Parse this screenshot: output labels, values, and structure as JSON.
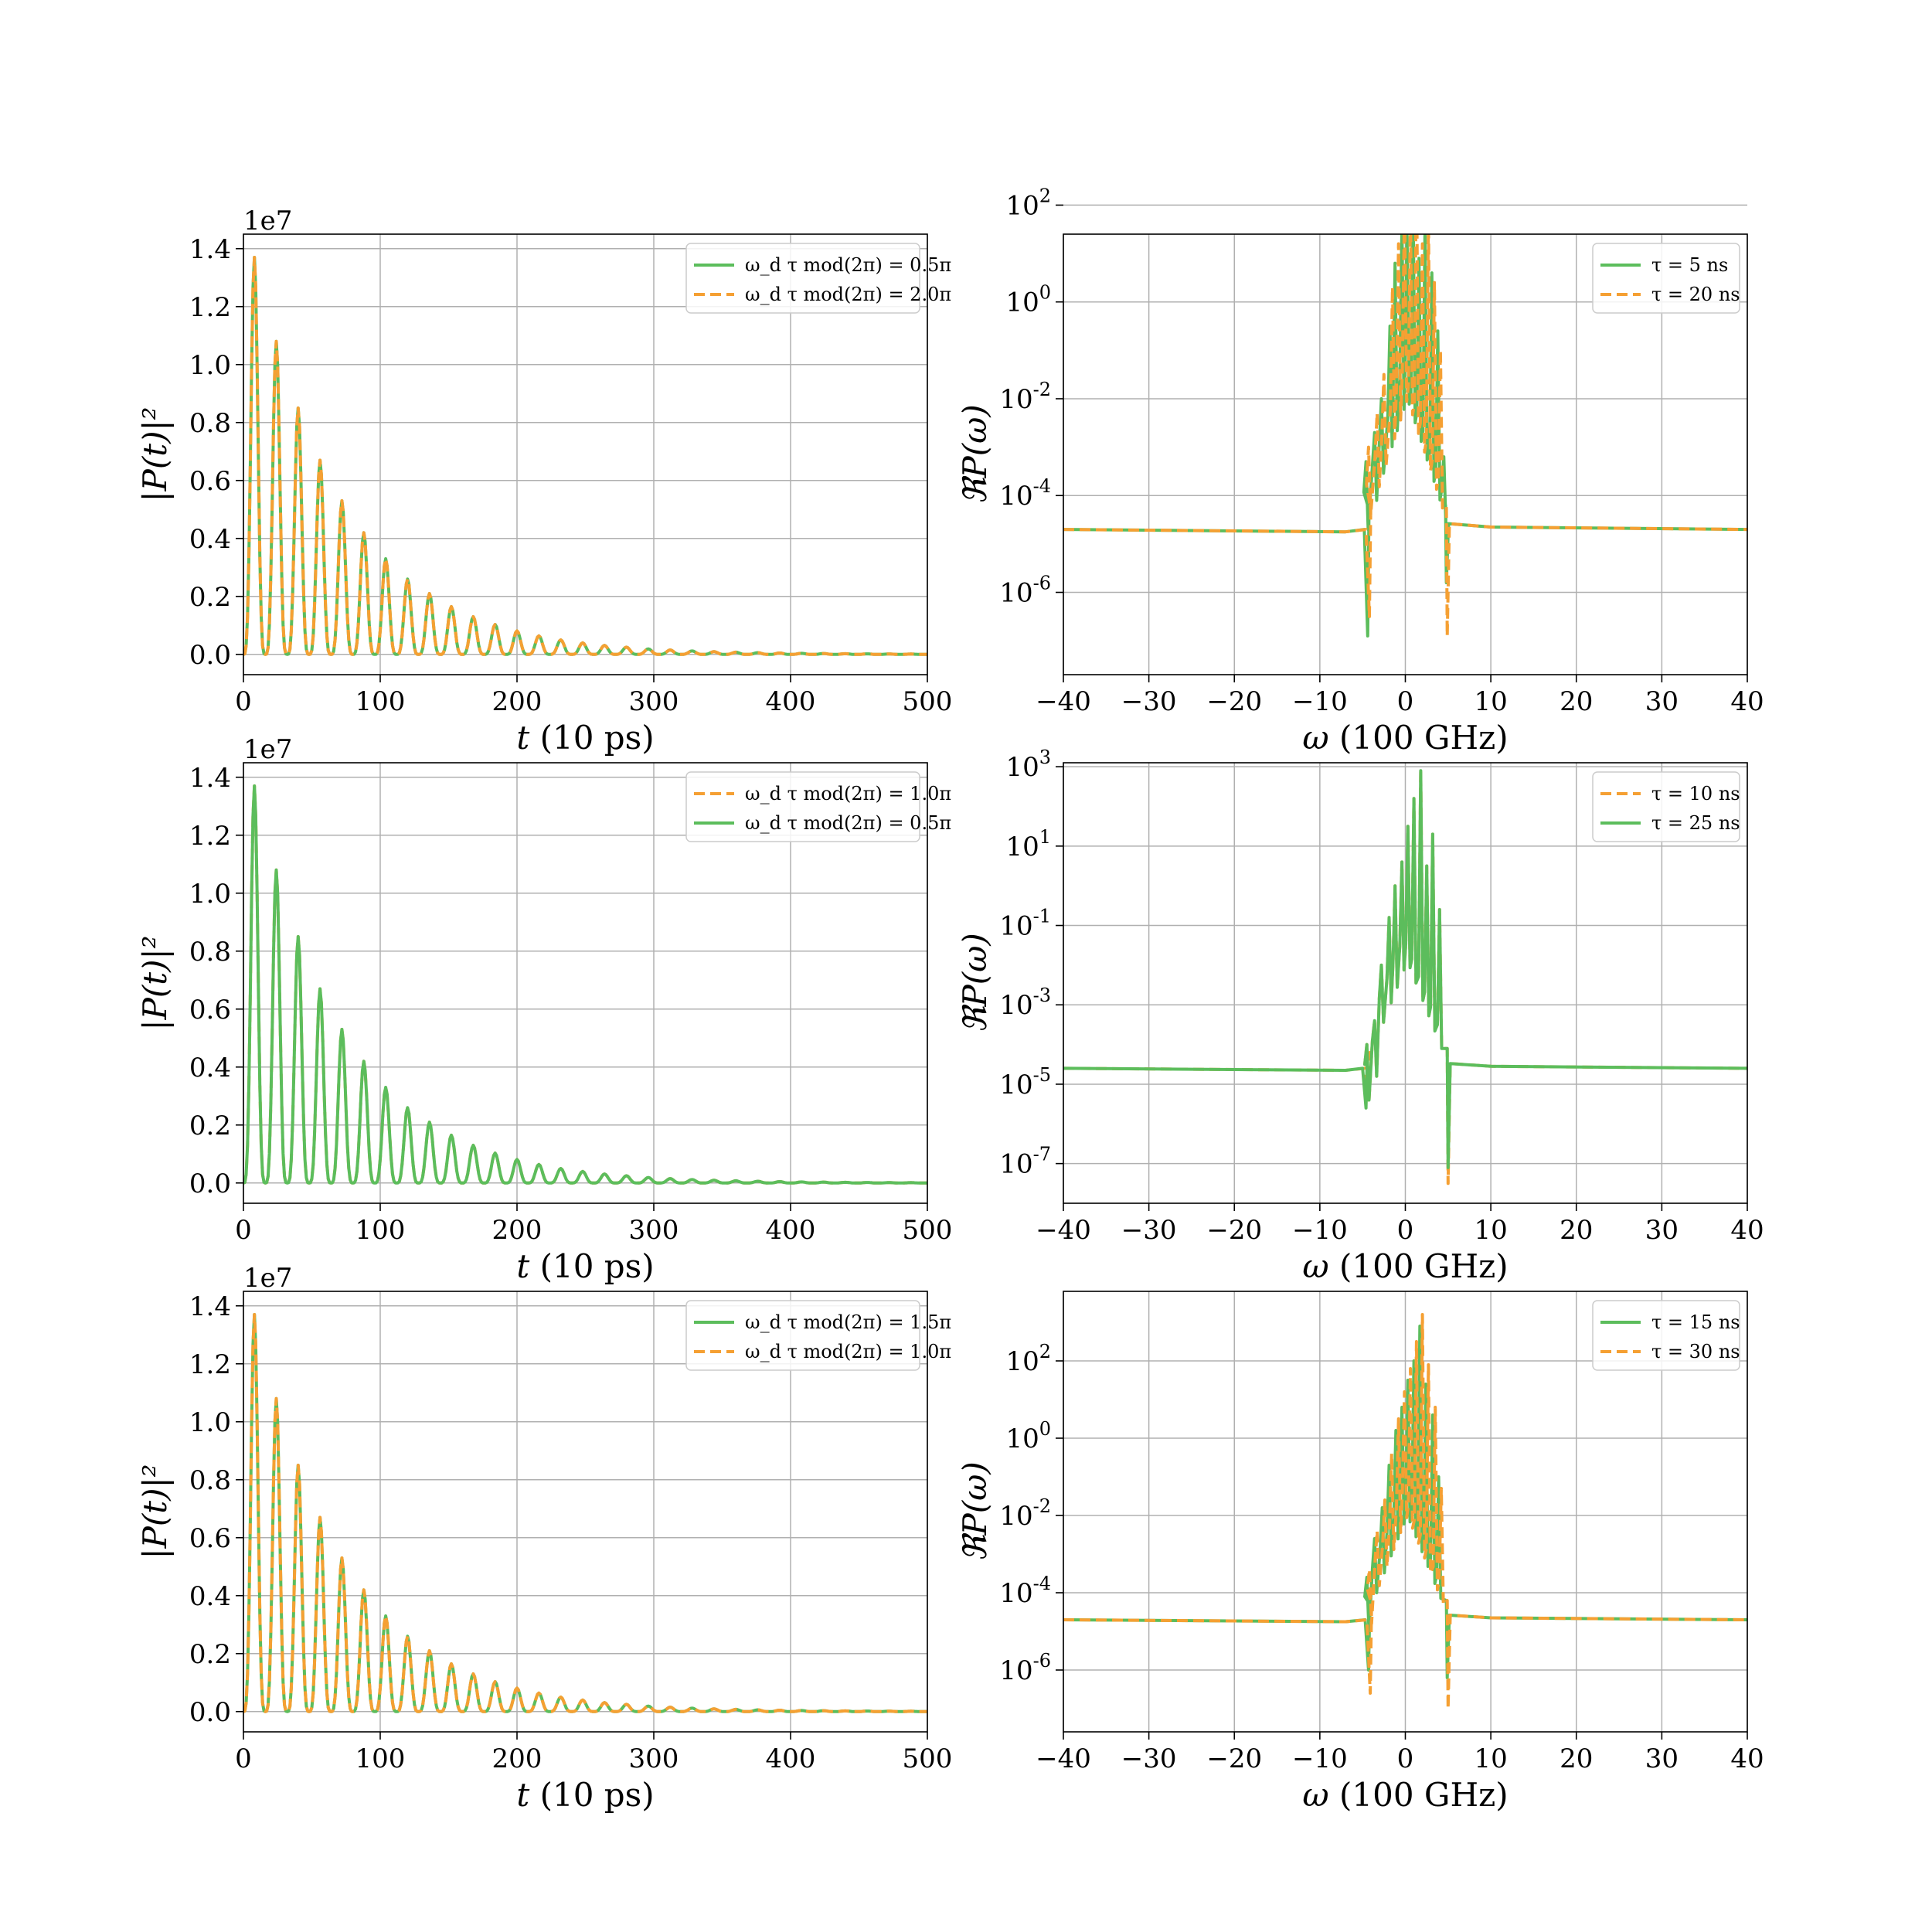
{
  "colors": {
    "green": "#5cbd5c",
    "orange": "#f5a033",
    "grid": "#b0b0b0"
  },
  "chart_data": [
    {
      "id": "p1",
      "type": "line",
      "scale": "linear",
      "xlabel_var": "t",
      "xlabel_unit": "(10 ps)",
      "ylabel": "|P(t)|²",
      "offset_text": "1e7",
      "xlim": [
        0,
        500
      ],
      "ylim": [
        -0.07,
        1.45
      ],
      "xticks": [
        "0",
        "100",
        "200",
        "300",
        "400",
        "500"
      ],
      "yticks": [
        "0.0",
        "0.2",
        "0.4",
        "0.6",
        "0.8",
        "1.0",
        "1.2",
        "1.4"
      ],
      "legend_position": "upper right",
      "series": [
        {
          "name": "ω_d τ mod(2π) = 0.5π",
          "style": "solid",
          "color": "green",
          "peak_x": [
            8,
            24,
            40,
            56,
            72,
            88,
            104,
            120,
            136,
            152,
            168,
            184,
            200,
            216,
            232,
            248,
            264,
            280,
            296,
            312,
            328,
            344,
            360,
            376,
            392,
            408,
            424,
            440,
            456,
            472,
            488
          ],
          "peak_y": [
            1.37,
            1.08,
            0.85,
            0.67,
            0.53,
            0.42,
            0.33,
            0.26,
            0.21,
            0.165,
            0.13,
            0.103,
            0.081,
            0.064,
            0.05,
            0.04,
            0.031,
            0.025,
            0.019,
            0.015,
            0.012,
            0.0095,
            0.0075,
            0.006,
            0.0047,
            0.0037,
            0.003,
            0.0023,
            0.0018,
            0.0014,
            0.0011
          ]
        },
        {
          "name": "ω_d τ mod(2π) = 2.0π",
          "style": "dashed",
          "color": "orange",
          "peak_x": [
            8,
            24,
            40,
            56,
            72,
            88,
            104,
            120,
            136,
            152,
            168,
            184,
            200,
            216,
            232,
            248,
            264,
            280,
            296,
            312,
            328,
            344,
            360,
            376,
            392,
            408,
            424,
            440,
            456,
            472,
            488
          ],
          "peak_y": [
            1.37,
            1.08,
            0.85,
            0.67,
            0.53,
            0.42,
            0.33,
            0.26,
            0.21,
            0.165,
            0.13,
            0.103,
            0.081,
            0.064,
            0.05,
            0.04,
            0.031,
            0.025,
            0.019,
            0.015,
            0.012,
            0.0095,
            0.0075,
            0.006,
            0.0047,
            0.0037,
            0.003,
            0.0023,
            0.0018,
            0.0014,
            0.0011
          ]
        }
      ]
    },
    {
      "id": "p2",
      "type": "line",
      "scale": "log",
      "xlabel_var": "ω",
      "xlabel_unit": "(100 GHz)",
      "ylabel": "ℜP(ω)",
      "xlim": [
        -40,
        40
      ],
      "ylim_exp": [
        -7.7,
        1.4
      ],
      "xticks": [
        "−40",
        "−30",
        "−20",
        "−10",
        "0",
        "10",
        "20",
        "30",
        "40"
      ],
      "ytick_exps": [
        "-6",
        "-4",
        "-2",
        "0",
        "2"
      ],
      "legend_position": "upper right",
      "series": [
        {
          "name": "τ = 5 ns",
          "style": "solid",
          "color": "green",
          "baseline_exp": -4.7,
          "spike_x": [
            -4.6,
            -3.6,
            -2.8,
            -1.8,
            -1.2,
            -0.4,
            0.2,
            0.9,
            1.6,
            2.3,
            3.1,
            3.8,
            4.5
          ],
          "spike_exp": [
            -3.3,
            -2.7,
            -2.0,
            -0.5,
            0.8,
            1.6,
            1.4,
            2.2,
            0.9,
            1.5,
            0.6,
            -0.6,
            -3.2
          ],
          "dip_x": [
            -4.4,
            4.8
          ],
          "dip_exp": [
            -6.9,
            -5.8
          ]
        },
        {
          "name": "τ = 20 ns",
          "style": "dashed",
          "color": "orange",
          "baseline_exp": -4.7,
          "spike_x": [
            -4.3,
            -3.3,
            -2.5,
            -1.5,
            -0.8,
            -0.1,
            0.6,
            1.3,
            2.0,
            2.7,
            3.4,
            4.1
          ],
          "spike_exp": [
            -3.0,
            -2.3,
            -1.5,
            0.3,
            1.2,
            2.0,
            1.8,
            2.9,
            1.2,
            1.7,
            0.4,
            -1.0
          ],
          "dip_x": [
            -4.2,
            4.9
          ],
          "dip_exp": [
            -6.5,
            -6.9
          ]
        }
      ]
    },
    {
      "id": "p3",
      "type": "line",
      "scale": "linear",
      "xlabel_var": "t",
      "xlabel_unit": "(10 ps)",
      "ylabel": "|P(t)|²",
      "offset_text": "1e7",
      "xlim": [
        0,
        500
      ],
      "ylim": [
        -0.07,
        1.45
      ],
      "xticks": [
        "0",
        "100",
        "200",
        "300",
        "400",
        "500"
      ],
      "yticks": [
        "0.0",
        "0.2",
        "0.4",
        "0.6",
        "0.8",
        "1.0",
        "1.2",
        "1.4"
      ],
      "legend_position": "upper right",
      "series": [
        {
          "name": "ω_d τ mod(2π) = 1.0π",
          "style": "dashed",
          "color": "orange",
          "peak_x": [
            8,
            24,
            40,
            56,
            72,
            88,
            104,
            120,
            136,
            152,
            168,
            184,
            200,
            216,
            232,
            248,
            264,
            280,
            296,
            312,
            328,
            344,
            360,
            376,
            392,
            408,
            424,
            440,
            456,
            472,
            488
          ],
          "peak_y": [
            1.37,
            1.08,
            0.85,
            0.67,
            0.53,
            0.42,
            0.33,
            0.26,
            0.21,
            0.165,
            0.13,
            0.103,
            0.081,
            0.064,
            0.05,
            0.04,
            0.031,
            0.025,
            0.019,
            0.015,
            0.012,
            0.0095,
            0.0075,
            0.006,
            0.0047,
            0.0037,
            0.003,
            0.0023,
            0.0018,
            0.0014,
            0.0011
          ]
        },
        {
          "name": "ω_d τ mod(2π) = 0.5π",
          "style": "solid",
          "color": "green",
          "peak_x": [
            8,
            24,
            40,
            56,
            72,
            88,
            104,
            120,
            136,
            152,
            168,
            184,
            200,
            216,
            232,
            248,
            264,
            280,
            296,
            312,
            328,
            344,
            360,
            376,
            392,
            408,
            424,
            440,
            456,
            472,
            488
          ],
          "peak_y": [
            1.37,
            1.08,
            0.85,
            0.67,
            0.53,
            0.42,
            0.33,
            0.26,
            0.21,
            0.165,
            0.13,
            0.103,
            0.081,
            0.064,
            0.05,
            0.04,
            0.031,
            0.025,
            0.019,
            0.015,
            0.012,
            0.0095,
            0.0075,
            0.006,
            0.0047,
            0.0037,
            0.003,
            0.0023,
            0.0018,
            0.0014,
            0.0011
          ]
        }
      ]
    },
    {
      "id": "p4",
      "type": "line",
      "scale": "log",
      "xlabel_var": "ω",
      "xlabel_unit": "(100 GHz)",
      "ylabel": "ℜP(ω)",
      "xlim": [
        -40,
        40
      ],
      "ylim_exp": [
        -8.0,
        3.1
      ],
      "xticks": [
        "−40",
        "−30",
        "−20",
        "−10",
        "0",
        "10",
        "20",
        "30",
        "40"
      ],
      "ytick_exps": [
        "-7",
        "-5",
        "-3",
        "-1",
        "1",
        "3"
      ],
      "legend_position": "upper right",
      "series": [
        {
          "name": "τ = 10 ns",
          "style": "dashed",
          "color": "orange",
          "baseline_exp": -4.6,
          "spike_x": [
            -4.5,
            -3.6,
            -2.8,
            -1.9,
            -1.2,
            -0.4,
            0.3,
            1.0,
            1.8,
            2.5,
            3.2,
            4.0
          ],
          "spike_exp": [
            -4.0,
            -3.4,
            -2.0,
            -0.8,
            0.0,
            0.6,
            1.5,
            2.2,
            2.9,
            0.5,
            1.3,
            -0.6
          ],
          "dip_x": [
            -4.3,
            5.0
          ],
          "dip_exp": [
            -5.4,
            -7.5
          ]
        },
        {
          "name": "τ = 25 ns",
          "style": "solid",
          "color": "green",
          "baseline_exp": -4.6,
          "spike_x": [
            -4.5,
            -3.6,
            -2.8,
            -1.9,
            -1.2,
            -0.4,
            0.3,
            1.0,
            1.8,
            2.5,
            3.2,
            4.0
          ],
          "spike_exp": [
            -4.0,
            -3.4,
            -2.0,
            -0.8,
            0.0,
            0.6,
            1.5,
            2.2,
            2.9,
            0.5,
            1.3,
            -0.6
          ],
          "dip_x": [
            -4.6,
            5.0
          ],
          "dip_exp": [
            -5.6,
            -7.1
          ]
        }
      ]
    },
    {
      "id": "p5",
      "type": "line",
      "scale": "linear",
      "xlabel_var": "t",
      "xlabel_unit": "(10 ps)",
      "ylabel": "|P(t)|²",
      "offset_text": "1e7",
      "xlim": [
        0,
        500
      ],
      "ylim": [
        -0.07,
        1.45
      ],
      "xticks": [
        "0",
        "100",
        "200",
        "300",
        "400",
        "500"
      ],
      "yticks": [
        "0.0",
        "0.2",
        "0.4",
        "0.6",
        "0.8",
        "1.0",
        "1.2",
        "1.4"
      ],
      "legend_position": "upper right",
      "series": [
        {
          "name": "ω_d τ mod(2π) = 1.5π",
          "style": "solid",
          "color": "green",
          "peak_x": [
            8,
            24,
            40,
            56,
            72,
            88,
            104,
            120,
            136,
            152,
            168,
            184,
            200,
            216,
            232,
            248,
            264,
            280,
            296,
            312,
            328,
            344,
            360,
            376,
            392,
            408,
            424,
            440,
            456,
            472,
            488
          ],
          "peak_y": [
            1.37,
            1.08,
            0.85,
            0.67,
            0.53,
            0.42,
            0.33,
            0.26,
            0.21,
            0.165,
            0.13,
            0.103,
            0.081,
            0.064,
            0.05,
            0.04,
            0.031,
            0.025,
            0.019,
            0.015,
            0.012,
            0.0095,
            0.0075,
            0.006,
            0.0047,
            0.0037,
            0.003,
            0.0023,
            0.0018,
            0.0014,
            0.0011
          ]
        },
        {
          "name": "ω_d τ mod(2π) = 1.0π",
          "style": "dashed",
          "color": "orange",
          "peak_x": [
            8,
            24,
            40,
            56,
            72,
            88,
            104,
            120,
            136,
            152,
            168,
            184,
            200,
            216,
            232,
            248,
            264,
            280,
            296,
            312,
            328,
            344,
            360,
            376,
            392,
            408,
            424,
            440,
            456,
            472,
            488
          ],
          "peak_y": [
            1.37,
            1.08,
            0.85,
            0.67,
            0.53,
            0.42,
            0.33,
            0.26,
            0.21,
            0.165,
            0.13,
            0.103,
            0.081,
            0.064,
            0.05,
            0.04,
            0.031,
            0.025,
            0.019,
            0.015,
            0.012,
            0.0095,
            0.0075,
            0.006,
            0.0047,
            0.0037,
            0.003,
            0.0023,
            0.0018,
            0.0014,
            0.0011
          ]
        }
      ]
    },
    {
      "id": "p6",
      "type": "line",
      "scale": "log",
      "xlabel_var": "ω",
      "xlabel_unit": "(100 GHz)",
      "ylabel": "ℜP(ω)",
      "xlim": [
        -40,
        40
      ],
      "ylim_exp": [
        -7.6,
        3.8
      ],
      "xticks": [
        "−40",
        "−30",
        "−20",
        "−10",
        "0",
        "10",
        "20",
        "30",
        "40"
      ],
      "ytick_exps": [
        "-6",
        "-4",
        "-2",
        "0",
        "2"
      ],
      "legend_position": "upper right",
      "series": [
        {
          "name": "τ = 15 ns",
          "style": "solid",
          "color": "green",
          "baseline_exp": -4.7,
          "spike_x": [
            -4.5,
            -3.6,
            -2.7,
            -1.9,
            -1.1,
            -0.4,
            0.3,
            1.0,
            1.7,
            2.4,
            3.2,
            3.9
          ],
          "spike_exp": [
            -3.6,
            -2.6,
            -1.8,
            -0.7,
            0.2,
            0.8,
            1.5,
            2.0,
            2.9,
            1.4,
            0.6,
            -1.0
          ],
          "dip_x": [
            -4.3,
            4.9
          ],
          "dip_exp": [
            -6.0,
            -6.2
          ]
        },
        {
          "name": "τ = 30 ns",
          "style": "dashed",
          "color": "orange",
          "baseline_exp": -4.7,
          "spike_x": [
            -4.2,
            -3.3,
            -2.4,
            -1.6,
            -0.8,
            -0.1,
            0.6,
            1.3,
            2.0,
            2.7,
            3.5,
            4.2
          ],
          "spike_exp": [
            -3.4,
            -2.4,
            -1.6,
            -0.4,
            0.5,
            1.2,
            1.8,
            2.5,
            3.2,
            1.9,
            0.8,
            -1.3
          ],
          "dip_x": [
            -4.1,
            5.0
          ],
          "dip_exp": [
            -6.6,
            -7.0
          ]
        }
      ]
    }
  ]
}
